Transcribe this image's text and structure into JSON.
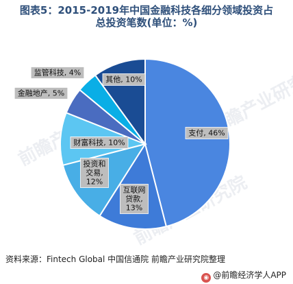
{
  "title_lines": [
    "图表5：2015-2019年中国金融科技各细分领域投资占",
    "总投资笔数(单位：%)"
  ],
  "chart_data": {
    "type": "pie",
    "title": "图表5：2015-2019年中国金融科技各细分领域投资占总投资笔数(单位：%)",
    "unit": "%",
    "slices": [
      {
        "label": "支付",
        "value": 46,
        "display": [
          "支付, 46%"
        ],
        "color": "#4a86e0"
      },
      {
        "label": "互联网贷款",
        "value": 13,
        "display": [
          "互联网",
          "贷款,",
          "13%"
        ],
        "color": "#3e7bd8"
      },
      {
        "label": "投资和交易",
        "value": 12,
        "display": [
          "投资和",
          "交易,",
          "12%"
        ],
        "color": "#48aee6"
      },
      {
        "label": "财富科技",
        "value": 10,
        "display": [
          "财富科技, 10%"
        ],
        "color": "#5cc6f2"
      },
      {
        "label": "金融地产",
        "value": 5,
        "display": [
          "金融地产, 5%"
        ],
        "color": "#4a6cc0"
      },
      {
        "label": "监管科技",
        "value": 4,
        "display": [
          "监管科技, 4%"
        ],
        "color": "#0aaee6"
      },
      {
        "label": "其他",
        "value": 10,
        "display": [
          "其他, 10%"
        ],
        "color": "#1a4c94"
      }
    ]
  },
  "source": "资料来源：Fintech Global 中国信通院 前瞻产业研究院整理",
  "credit": "@前瞻经济学人APP",
  "watermark": "前瞻产业研究院"
}
